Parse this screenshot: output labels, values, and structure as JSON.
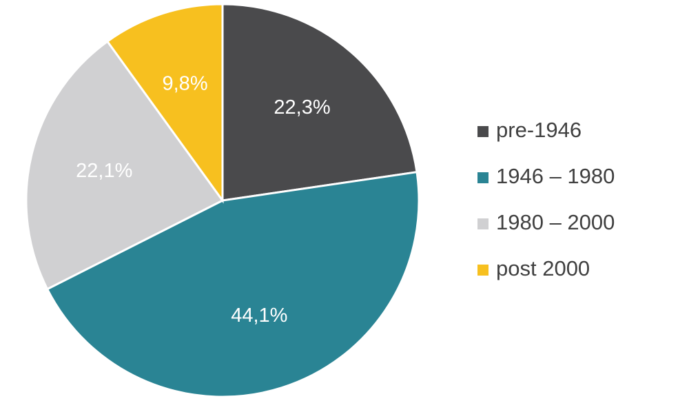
{
  "chart_data": {
    "type": "pie",
    "categories": [
      "pre-1946",
      "1946 – 1980",
      "1980 – 2000",
      "post 2000"
    ],
    "values": [
      22.3,
      44.1,
      22.1,
      9.8
    ],
    "value_labels": [
      "22,3%",
      "44,1%",
      "22,1%",
      "9,8%"
    ],
    "colors": [
      "#4a4a4c",
      "#2a8494",
      "#d0d0d2",
      "#f7c01f"
    ],
    "legend": "right"
  }
}
